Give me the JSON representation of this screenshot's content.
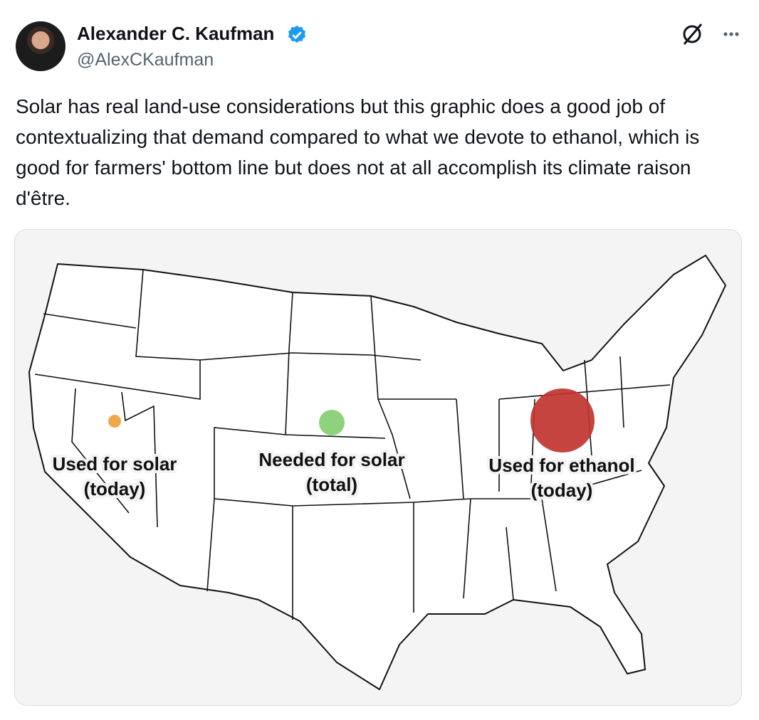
{
  "author": {
    "name": "Alexander C. Kaufman",
    "handle": "@AlexCKaufman"
  },
  "tweet": {
    "text": "Solar has real land-use considerations but this graphic does a good job of contextualizing that demand compared to what we devote to ethanol, which is good for farmers' bottom line but does not at all accomplish its climate raison d'être."
  },
  "map": {
    "labels": [
      {
        "lines": [
          "Used for solar",
          "(today)"
        ]
      },
      {
        "lines": [
          "Needed for solar",
          "(total)"
        ]
      },
      {
        "lines": [
          "Used for ethanol",
          "(today)"
        ]
      }
    ]
  }
}
